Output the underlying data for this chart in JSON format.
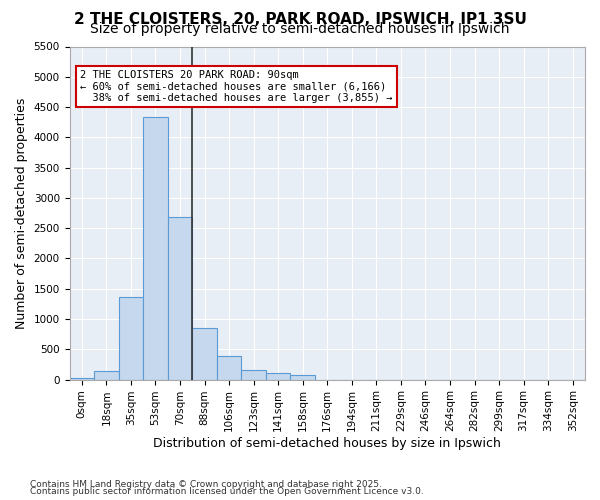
{
  "title_line1": "2 THE CLOISTERS, 20, PARK ROAD, IPSWICH, IP1 3SU",
  "title_line2": "Size of property relative to semi-detached houses in Ipswich",
  "xlabel": "Distribution of semi-detached houses by size in Ipswich",
  "ylabel": "Number of semi-detached properties",
  "property_label": "2 THE CLOISTERS 20 PARK ROAD: 90sqm",
  "smaller_pct": "60%",
  "smaller_count": "6,166",
  "larger_pct": "38%",
  "larger_count": "3,855",
  "bin_labels": [
    "0sqm",
    "18sqm",
    "35sqm",
    "53sqm",
    "70sqm",
    "88sqm",
    "106sqm",
    "123sqm",
    "141sqm",
    "158sqm",
    "176sqm",
    "194sqm",
    "211sqm",
    "229sqm",
    "246sqm",
    "264sqm",
    "282sqm",
    "299sqm",
    "317sqm",
    "334sqm",
    "352sqm"
  ],
  "bar_values": [
    30,
    150,
    1370,
    4330,
    2680,
    850,
    390,
    160,
    110,
    75,
    0,
    0,
    0,
    0,
    0,
    0,
    0,
    0,
    0,
    0,
    0
  ],
  "bar_color": "#c5d8ed",
  "bar_edge_color": "#5b9bd5",
  "vline_color": "#333333",
  "annotation_box_color": "#cc0000",
  "ylim": [
    0,
    5500
  ],
  "yticks": [
    0,
    500,
    1000,
    1500,
    2000,
    2500,
    3000,
    3500,
    4000,
    4500,
    5000,
    5500
  ],
  "bg_color": "#e8eef5",
  "footer_line1": "Contains HM Land Registry data © Crown copyright and database right 2025.",
  "footer_line2": "Contains public sector information licensed under the Open Government Licence v3.0.",
  "title_fontsize": 11,
  "subtitle_fontsize": 10,
  "tick_fontsize": 7.5,
  "ylabel_fontsize": 9,
  "xlabel_fontsize": 9
}
